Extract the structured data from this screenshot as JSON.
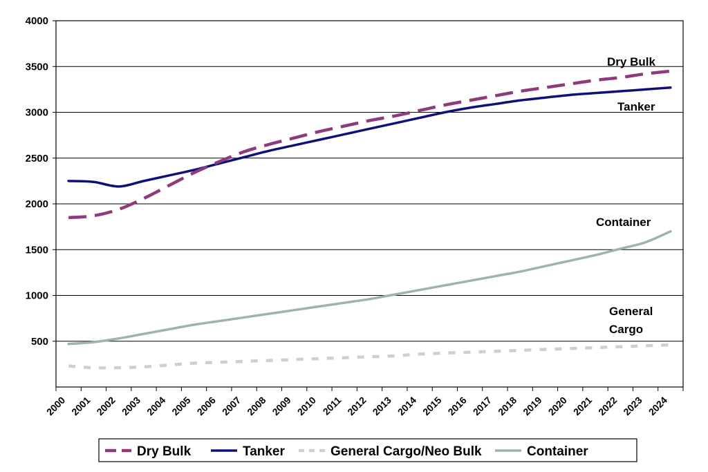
{
  "chart_data": {
    "type": "line",
    "title": "",
    "xlabel": "",
    "ylabel": "",
    "ylim": [
      0,
      4000
    ],
    "yticks": [
      500,
      1000,
      1500,
      2000,
      2500,
      3000,
      3500,
      4000
    ],
    "grid": "horizontal",
    "legend_position": "bottom",
    "x": [
      "2000",
      "2001",
      "2002",
      "2003",
      "2004",
      "2005",
      "2006",
      "2007",
      "2008",
      "2009",
      "2010",
      "2011",
      "2012",
      "2013",
      "2014",
      "2015",
      "2016",
      "2017",
      "2018",
      "2019",
      "2020",
      "2021",
      "2022",
      "2023",
      "2024"
    ],
    "series": [
      {
        "name": "Dry Bulk",
        "color": "#8e3a7c",
        "style": "dashed",
        "values": [
          1850,
          1870,
          1940,
          2060,
          2200,
          2340,
          2460,
          2570,
          2650,
          2720,
          2790,
          2850,
          2910,
          2960,
          3020,
          3080,
          3130,
          3180,
          3230,
          3270,
          3310,
          3350,
          3380,
          3420,
          3450
        ]
      },
      {
        "name": "Tanker",
        "color": "#10107a",
        "style": "solid",
        "values": [
          2250,
          2240,
          2190,
          2250,
          2310,
          2370,
          2440,
          2510,
          2580,
          2640,
          2700,
          2760,
          2820,
          2880,
          2940,
          3000,
          3050,
          3090,
          3130,
          3160,
          3190,
          3210,
          3230,
          3250,
          3270
        ]
      },
      {
        "name": "General Cargo/Neo Bulk",
        "color": "#cfcfcf",
        "style": "dotted",
        "values": [
          230,
          210,
          210,
          220,
          240,
          260,
          270,
          280,
          290,
          300,
          310,
          320,
          330,
          340,
          360,
          370,
          380,
          390,
          400,
          410,
          420,
          430,
          440,
          450,
          460
        ]
      },
      {
        "name": "Container",
        "color": "#9fb3ad",
        "style": "solid",
        "values": [
          470,
          490,
          530,
          580,
          630,
          680,
          720,
          760,
          800,
          840,
          880,
          920,
          960,
          1010,
          1060,
          1110,
          1160,
          1210,
          1260,
          1320,
          1380,
          1440,
          1510,
          1580,
          1700
        ]
      }
    ],
    "annotations": [
      {
        "text": "Dry Bulk"
      },
      {
        "text": "Tanker"
      },
      {
        "text": "Container"
      },
      {
        "text": "General Cargo"
      }
    ]
  }
}
